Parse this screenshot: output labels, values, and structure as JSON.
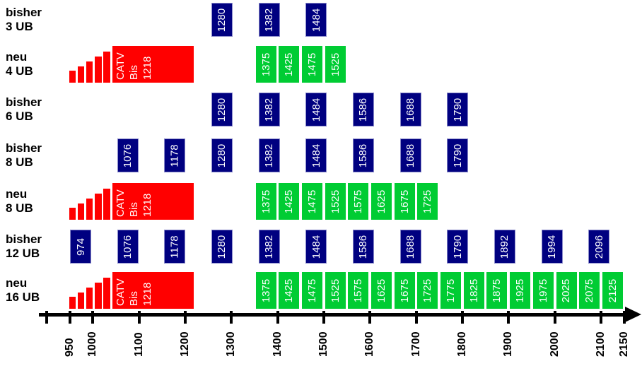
{
  "chart_data": {
    "type": "bar",
    "title": "",
    "orientation": "horizontal-frequency-plan",
    "x_axis": {
      "range": [
        900,
        2150
      ],
      "ticks": [
        900,
        950,
        1000,
        1100,
        1200,
        1300,
        1400,
        1500,
        1600,
        1700,
        1800,
        1900,
        2000,
        2100,
        2150
      ],
      "tick_labels": [
        "950",
        "1000",
        "1100",
        "1200",
        "1300",
        "1400",
        "1500",
        "1600",
        "1700",
        "1800",
        "1900",
        "2000",
        "2100",
        "2150"
      ]
    },
    "colors": {
      "bisher_box": "#000080",
      "neu_box": "#00cc33",
      "catv_block": "#ff0000",
      "box_text": "#ffffff",
      "axis": "#000000"
    },
    "catv": {
      "band_label": [
        "CATV",
        "Bis",
        "1218"
      ],
      "band_start": 950,
      "block_start": 1045,
      "band_end": 1218,
      "steps": 5
    },
    "rows": [
      {
        "label_line1": "bisher",
        "label_line2": "3 UB",
        "type": "bisher",
        "catv": false,
        "boxes": [
          1280,
          1382,
          1484
        ]
      },
      {
        "label_line1": "neu",
        "label_line2": "4 UB",
        "type": "neu",
        "catv": true,
        "boxes": [
          1375,
          1425,
          1475,
          1525
        ]
      },
      {
        "label_line1": "bisher",
        "label_line2": "6 UB",
        "type": "bisher",
        "catv": false,
        "boxes": [
          1280,
          1382,
          1484,
          1586,
          1688,
          1790
        ]
      },
      {
        "label_line1": "bisher",
        "label_line2": "8 UB",
        "type": "bisher",
        "catv": false,
        "boxes": [
          1076,
          1178,
          1280,
          1382,
          1484,
          1586,
          1688,
          1790
        ]
      },
      {
        "label_line1": "neu",
        "label_line2": "8 UB",
        "type": "neu",
        "catv": true,
        "boxes": [
          1375,
          1425,
          1475,
          1525,
          1575,
          1625,
          1675,
          1725
        ]
      },
      {
        "label_line1": "bisher",
        "label_line2": "12 UB",
        "type": "bisher",
        "catv": false,
        "boxes": [
          974,
          1076,
          1178,
          1280,
          1382,
          1484,
          1586,
          1688,
          1790,
          1892,
          1994,
          2096
        ]
      },
      {
        "label_line1": "neu",
        "label_line2": "16 UB",
        "type": "neu",
        "catv": true,
        "boxes": [
          1375,
          1425,
          1475,
          1525,
          1575,
          1625,
          1675,
          1725,
          1775,
          1825,
          1875,
          1925,
          1975,
          2025,
          2075,
          2125
        ]
      }
    ]
  }
}
